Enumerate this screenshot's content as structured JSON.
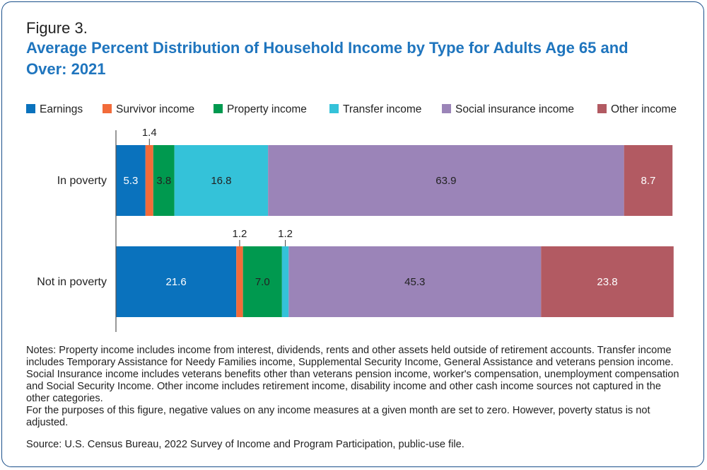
{
  "figure_label": "Figure 3.",
  "chart_data": {
    "type": "bar",
    "orientation": "horizontal",
    "stacked": true,
    "title": "Average Percent Distribution of Household Income by Type for Adults Age 65 and Over: 2021",
    "categories": [
      "In poverty",
      "Not in poverty"
    ],
    "series": [
      {
        "name": "Earnings",
        "color": "#0a72bd",
        "values": [
          5.3,
          21.6
        ],
        "labels": [
          "5.3",
          "21.6"
        ]
      },
      {
        "name": "Survivor income",
        "color": "#f26b3a",
        "values": [
          1.4,
          1.2
        ],
        "labels": [
          "1.4",
          "1.2"
        ]
      },
      {
        "name": "Property income",
        "color": "#00994f",
        "values": [
          3.8,
          7.0
        ],
        "labels": [
          "3.8",
          "7.0"
        ]
      },
      {
        "name": "Transfer income",
        "color": "#34c2d9",
        "values": [
          16.8,
          1.2
        ],
        "labels": [
          "16.8",
          "1.2"
        ]
      },
      {
        "name": "Social insurance income",
        "color": "#9b84b8",
        "values": [
          63.9,
          45.3
        ],
        "labels": [
          "63.9",
          "45.3"
        ]
      },
      {
        "name": "Other income",
        "color": "#b25a62",
        "values": [
          8.7,
          23.8
        ],
        "labels": [
          "8.7",
          "23.8"
        ]
      }
    ],
    "xlim": [
      0,
      100
    ],
    "legend": "top",
    "grid": false
  },
  "notes": [
    "Notes: Property income includes income from interest, dividends, rents and other assets held outside of retirement accounts. Transfer income includes Temporary Assistance for Needy Families income, Supplemental Security Income, General Assistance and veterans pension income. Social Insurance income includes veterans benefits other than veterans pension income, worker's compensation, unemployment compensation and Social Security Income. Other income includes retirement income, disability income and other cash income sources not captured in the other categories.",
    "For the purposes of this figure, negative values on any income measures at a given month are set to zero. However, poverty status is not adjusted."
  ],
  "source": "Source: U.S. Census Bureau, 2022 Survey of Income and Program Participation, public-use file."
}
